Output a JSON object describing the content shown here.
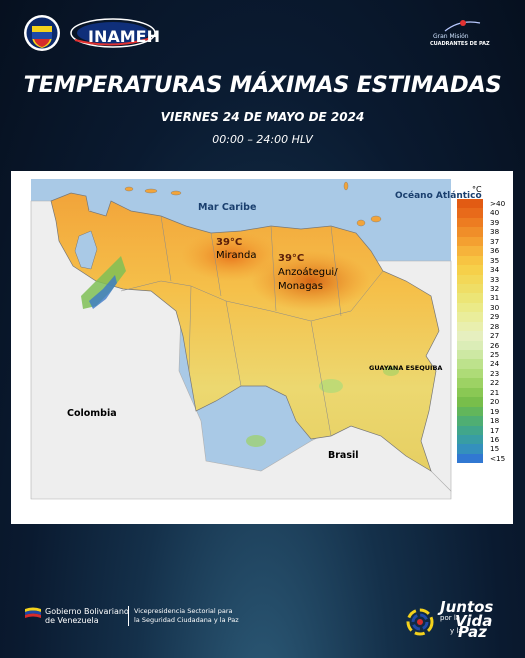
{
  "header": {
    "inameh_logo_text": "INAMEH",
    "plan_logo_line1": "Gran Misión",
    "plan_logo_line2": "CUADRANTES DE PAZ"
  },
  "title": "TEMPERATURAS MÁXIMAS ESTIMADAS",
  "date": "VIERNES 24 DE MAYO DE 2024",
  "time_range": "00:00 – 24:00 HLV",
  "map": {
    "labels": {
      "mar_caribe": "Mar Caribe",
      "oceano": "Océano Atlántico",
      "colombia": "Colombia",
      "brasil": "Brasil",
      "guyana": "GUAYANA ESEQUIBA"
    },
    "annotations": [
      {
        "value": "39°C",
        "state": "Miranda"
      },
      {
        "value": "39°C",
        "state_line1": "Anzoátegui/",
        "state_line2": "Monagas"
      }
    ]
  },
  "legend": {
    "unit": "°C",
    "items": [
      {
        "label": ">40",
        "color": "#e25b13"
      },
      {
        "label": "40",
        "color": "#e86a1a"
      },
      {
        "label": "39",
        "color": "#ed7c21"
      },
      {
        "label": "38",
        "color": "#f08e29"
      },
      {
        "label": "37",
        "color": "#f4a031"
      },
      {
        "label": "36",
        "color": "#f6b33b"
      },
      {
        "label": "35",
        "color": "#f7c442"
      },
      {
        "label": "34",
        "color": "#f6d04a"
      },
      {
        "label": "33",
        "color": "#f3d858"
      },
      {
        "label": "32",
        "color": "#efde66"
      },
      {
        "label": "31",
        "color": "#ece576"
      },
      {
        "label": "30",
        "color": "#ebea88"
      },
      {
        "label": "29",
        "color": "#eaed9b"
      },
      {
        "label": "28",
        "color": "#e9efae"
      },
      {
        "label": "27",
        "color": "#e6efbf"
      },
      {
        "label": "26",
        "color": "#dbedb7"
      },
      {
        "label": "25",
        "color": "#cde8a3"
      },
      {
        "label": "24",
        "color": "#bde28c"
      },
      {
        "label": "23",
        "color": "#aedb77"
      },
      {
        "label": "22",
        "color": "#9dd264"
      },
      {
        "label": "21",
        "color": "#8ac854"
      },
      {
        "label": "20",
        "color": "#78be4b"
      },
      {
        "label": "19",
        "color": "#62b65b"
      },
      {
        "label": "18",
        "color": "#4fae73"
      },
      {
        "label": "17",
        "color": "#41a68b"
      },
      {
        "label": "16",
        "color": "#389da4"
      },
      {
        "label": "15",
        "color": "#3490bd"
      },
      {
        "label": "<15",
        "color": "#3178d2"
      }
    ]
  },
  "footer": {
    "gobierno_line1": "Gobierno Bolivariano",
    "gobierno_line2": "de Venezuela",
    "vice_line1": "Vicepresidencia Sectorial para",
    "vice_line2": "la Seguridad Ciudadana y la Paz",
    "juntos": "Juntos",
    "por_la": "por la",
    "vida": "Vida",
    "y_la": "y la",
    "paz": "Paz"
  }
}
